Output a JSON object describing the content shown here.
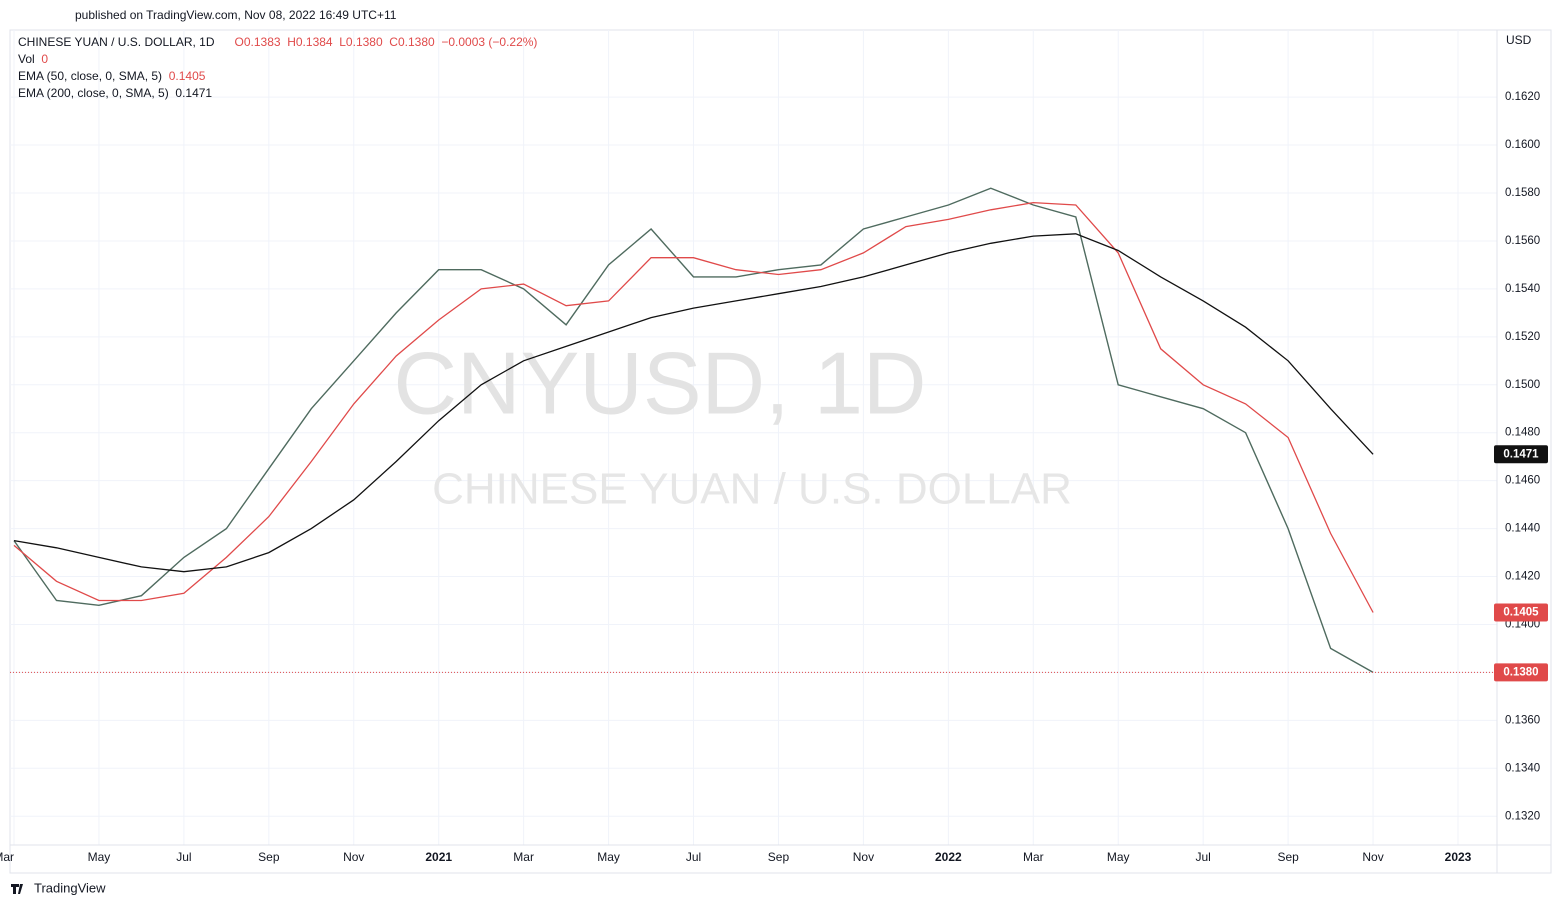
{
  "header": {
    "publisher": "published on TradingView.com, Nov 08, 2022 16:49 UTC+11"
  },
  "legend": {
    "symbol": "CHINESE YUAN / U.S. DOLLAR, 1D",
    "ohlc": "O0.1383  H0.1384  L0.1380  C0.1380  −0.0003 (−0.22%)",
    "volume_name": "Vol",
    "volume_value": "0",
    "ema50_name": "EMA (50, close, 0, SMA, 5)",
    "ema50_value": "0.1405",
    "ema200_name": "EMA (200, close, 0, SMA, 5)",
    "ema200_value": "0.1471"
  },
  "watermark": {
    "ticker": "CNYUSD, 1D",
    "name": "CHINESE YUAN / U.S. DOLLAR"
  },
  "footer": {
    "brand": "TradingView"
  },
  "chart_data": {
    "type": "line",
    "y_unit": "USD",
    "x": [
      "2020-03",
      "2020-04",
      "2020-05",
      "2020-06",
      "2020-07",
      "2020-08",
      "2020-09",
      "2020-10",
      "2020-11",
      "2020-12",
      "2021-01",
      "2021-02",
      "2021-03",
      "2021-04",
      "2021-05",
      "2021-06",
      "2021-07",
      "2021-08",
      "2021-09",
      "2021-10",
      "2021-11",
      "2021-12",
      "2022-01",
      "2022-02",
      "2022-03",
      "2022-04",
      "2022-05",
      "2022-06",
      "2022-07",
      "2022-08",
      "2022-09",
      "2022-10",
      "2022-11"
    ],
    "series": [
      {
        "name": "Close",
        "color": "#4f6b5f",
        "values": [
          0.1435,
          0.141,
          0.1408,
          0.1412,
          0.1428,
          0.144,
          0.1465,
          0.149,
          0.151,
          0.153,
          0.1548,
          0.1548,
          0.154,
          0.1525,
          0.155,
          0.1565,
          0.1545,
          0.1545,
          0.1548,
          0.155,
          0.1565,
          0.157,
          0.1575,
          0.1582,
          0.1575,
          0.157,
          0.15,
          0.1495,
          0.149,
          0.148,
          0.144,
          0.139,
          0.138
        ]
      },
      {
        "name": "EMA 50",
        "color": "#e04a4a",
        "values": [
          0.1433,
          0.1418,
          0.141,
          0.141,
          0.1413,
          0.1428,
          0.1445,
          0.1468,
          0.1492,
          0.1512,
          0.1527,
          0.154,
          0.1542,
          0.1533,
          0.1535,
          0.1553,
          0.1553,
          0.1548,
          0.1546,
          0.1548,
          0.1555,
          0.1566,
          0.1569,
          0.1573,
          0.1576,
          0.1575,
          0.1555,
          0.1515,
          0.15,
          0.1492,
          0.1478,
          0.1438,
          0.1405
        ]
      },
      {
        "name": "EMA 200",
        "color": "#111111",
        "values": [
          0.1435,
          0.1432,
          0.1428,
          0.1424,
          0.1422,
          0.1424,
          0.143,
          0.144,
          0.1452,
          0.1468,
          0.1485,
          0.15,
          0.151,
          0.1516,
          0.1522,
          0.1528,
          0.1532,
          0.1535,
          0.1538,
          0.1541,
          0.1545,
          0.155,
          0.1555,
          0.1559,
          0.1562,
          0.1563,
          0.1556,
          0.1545,
          0.1535,
          0.1524,
          0.151,
          0.149,
          0.1471
        ]
      }
    ],
    "price_tags": [
      {
        "value": 0.1471,
        "label": "0.1471",
        "color": "#111111"
      },
      {
        "value": 0.1405,
        "label": "0.1405",
        "color": "#e04a4a"
      },
      {
        "value": 0.138,
        "label": "0.1380",
        "color": "#e04a4a"
      }
    ],
    "xlim": [
      "2020-03",
      "2023-01"
    ],
    "xticks": [
      {
        "value": "2020-03",
        "label": "Mar"
      },
      {
        "value": "2020-05",
        "label": "May"
      },
      {
        "value": "2020-07",
        "label": "Jul"
      },
      {
        "value": "2020-09",
        "label": "Sep"
      },
      {
        "value": "2020-11",
        "label": "Nov"
      },
      {
        "value": "2021-01",
        "label": "2021"
      },
      {
        "value": "2021-03",
        "label": "Mar"
      },
      {
        "value": "2021-05",
        "label": "May"
      },
      {
        "value": "2021-07",
        "label": "Jul"
      },
      {
        "value": "2021-09",
        "label": "Sep"
      },
      {
        "value": "2021-11",
        "label": "Nov"
      },
      {
        "value": "2022-01",
        "label": "2022"
      },
      {
        "value": "2022-03",
        "label": "Mar"
      },
      {
        "value": "2022-05",
        "label": "May"
      },
      {
        "value": "2022-07",
        "label": "Jul"
      },
      {
        "value": "2022-09",
        "label": "Sep"
      },
      {
        "value": "2022-11",
        "label": "Nov"
      },
      {
        "value": "2023-01",
        "label": "2023"
      }
    ],
    "ylim": [
      0.1308,
      0.1648
    ],
    "yticks": [
      {
        "value": 0.132,
        "label": "0.1320"
      },
      {
        "value": 0.134,
        "label": "0.1340"
      },
      {
        "value": 0.136,
        "label": "0.1360"
      },
      {
        "value": 0.138,
        "label": "0.1380"
      },
      {
        "value": 0.14,
        "label": "0.1400"
      },
      {
        "value": 0.142,
        "label": "0.1420"
      },
      {
        "value": 0.144,
        "label": "0.1440"
      },
      {
        "value": 0.146,
        "label": "0.1460"
      },
      {
        "value": 0.148,
        "label": "0.1480"
      },
      {
        "value": 0.15,
        "label": "0.1500"
      },
      {
        "value": 0.152,
        "label": "0.1520"
      },
      {
        "value": 0.154,
        "label": "0.1540"
      },
      {
        "value": 0.156,
        "label": "0.1560"
      },
      {
        "value": 0.158,
        "label": "0.1580"
      },
      {
        "value": 0.16,
        "label": "0.1600"
      },
      {
        "value": 0.162,
        "label": "0.1620"
      }
    ],
    "grid": true
  }
}
